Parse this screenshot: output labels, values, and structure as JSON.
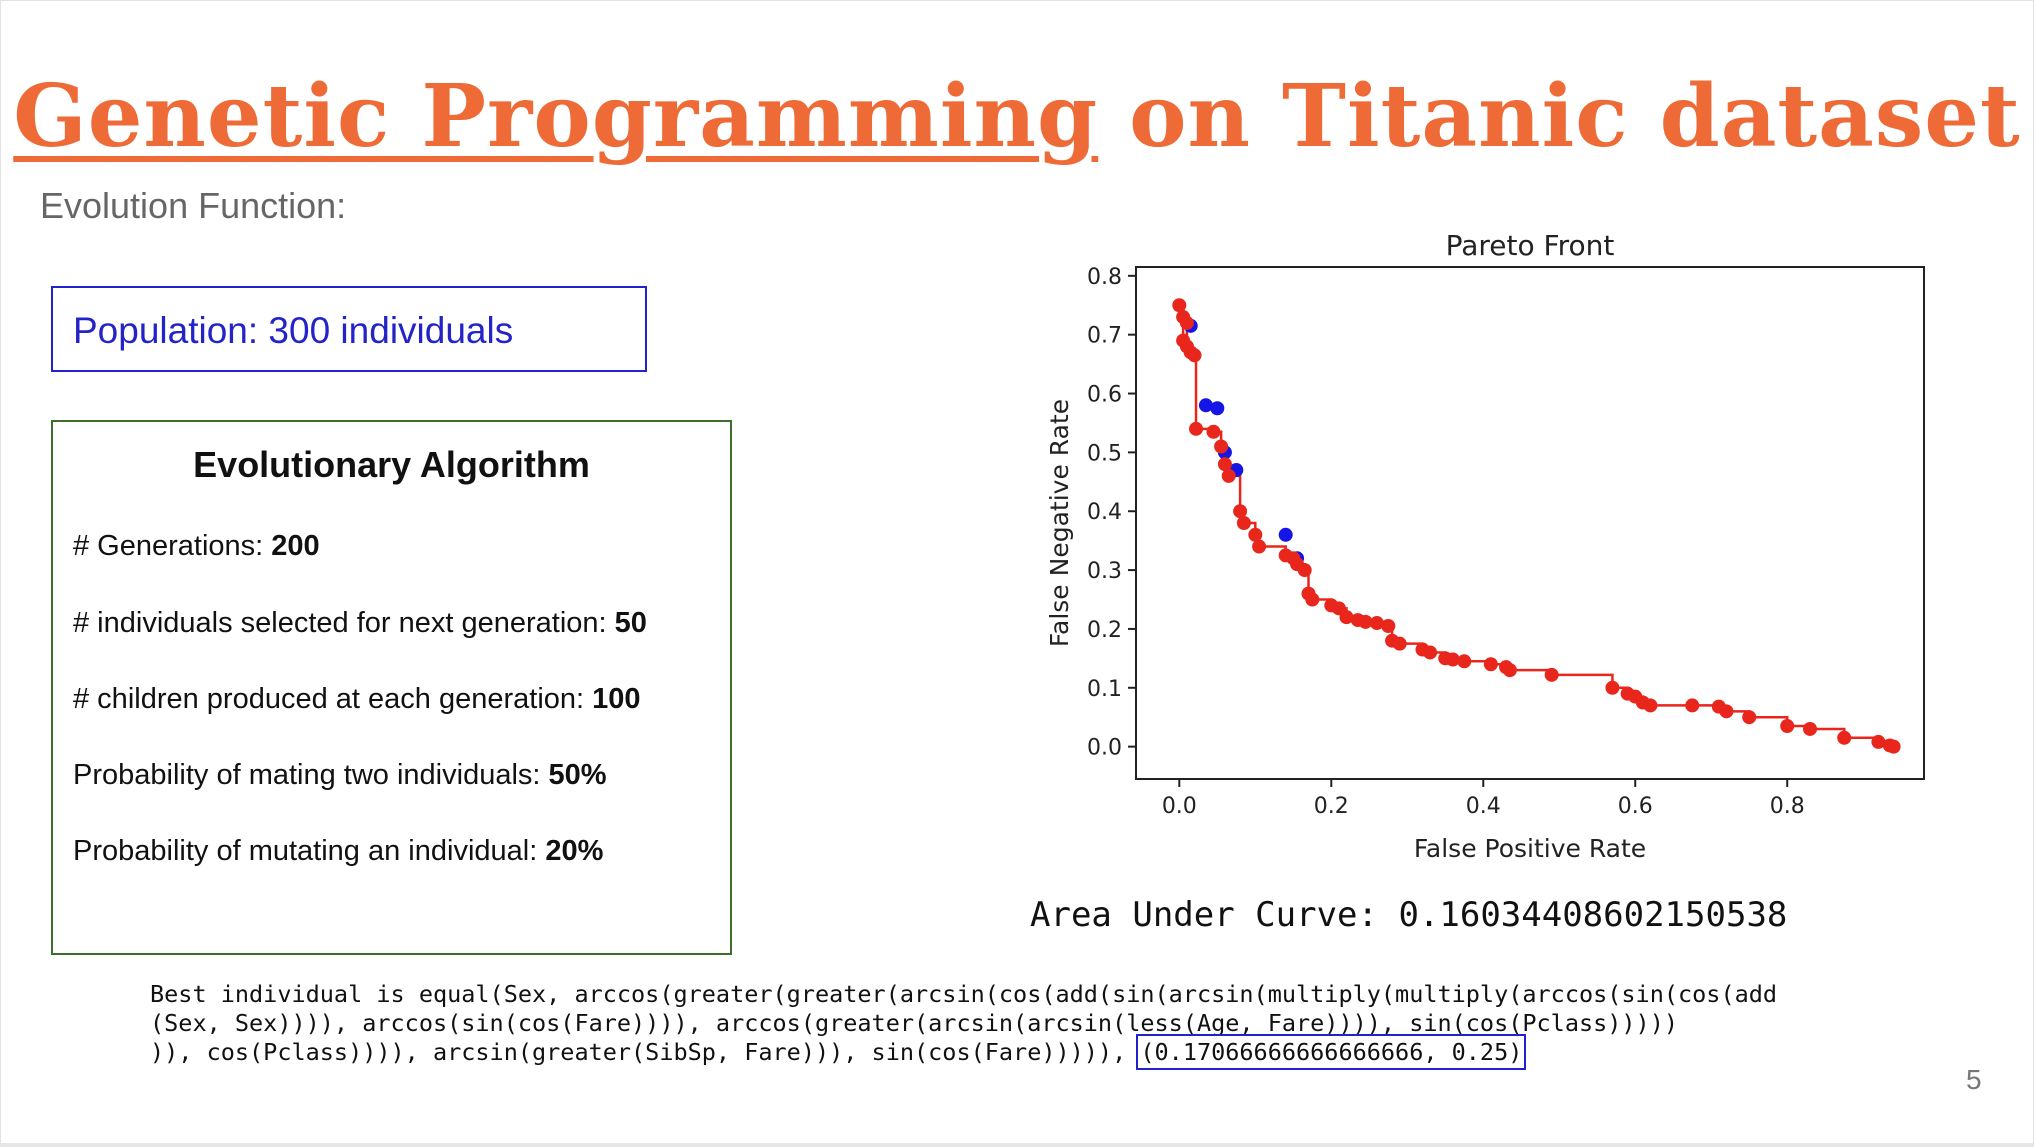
{
  "title": {
    "part1": "Genetic Programming",
    "part2": " on Titanic dataset"
  },
  "subtitle": "Evolution Function:",
  "population": "Population: 300 individuals",
  "ea": {
    "title": "Evolutionary Algorithm",
    "items": [
      {
        "label": "# Generations: ",
        "value": "200"
      },
      {
        "label": "# individuals selected for next generation: ",
        "value": "50"
      },
      {
        "label": "# children produced at each generation: ",
        "value": "100"
      },
      {
        "label": "Probability of mating two individuals: ",
        "value": "50%"
      },
      {
        "label": "Probability of mutating an individual: ",
        "value": "20%"
      }
    ]
  },
  "chart_data": {
    "type": "scatter",
    "title": "Pareto Front",
    "xlabel": "False Positive Rate",
    "ylabel": "False Negative Rate",
    "xlim": [
      -0.057,
      0.98
    ],
    "ylim": [
      -0.055,
      0.815
    ],
    "xticks": [
      "0.0",
      "0.2",
      "0.4",
      "0.6",
      "0.8"
    ],
    "yticks": [
      "0.0",
      "0.1",
      "0.2",
      "0.3",
      "0.4",
      "0.5",
      "0.6",
      "0.7",
      "0.8"
    ],
    "grid": false,
    "series": [
      {
        "color": "#1515e6",
        "points": [
          [
            0.015,
            0.715
          ],
          [
            0.035,
            0.58
          ],
          [
            0.05,
            0.575
          ],
          [
            0.06,
            0.5
          ],
          [
            0.075,
            0.47
          ],
          [
            0.14,
            0.36
          ],
          [
            0.155,
            0.32
          ]
        ]
      },
      {
        "color": "#e8261c",
        "points": [
          [
            0.0,
            0.75
          ],
          [
            0.005,
            0.73
          ],
          [
            0.01,
            0.72
          ],
          [
            0.005,
            0.69
          ],
          [
            0.01,
            0.68
          ],
          [
            0.015,
            0.67
          ],
          [
            0.02,
            0.665
          ],
          [
            0.022,
            0.54
          ],
          [
            0.045,
            0.535
          ],
          [
            0.055,
            0.51
          ],
          [
            0.06,
            0.48
          ],
          [
            0.065,
            0.46
          ],
          [
            0.08,
            0.4
          ],
          [
            0.085,
            0.38
          ],
          [
            0.1,
            0.36
          ],
          [
            0.105,
            0.34
          ],
          [
            0.14,
            0.325
          ],
          [
            0.15,
            0.32
          ],
          [
            0.155,
            0.31
          ],
          [
            0.165,
            0.3
          ],
          [
            0.17,
            0.26
          ],
          [
            0.175,
            0.25
          ],
          [
            0.2,
            0.24
          ],
          [
            0.21,
            0.235
          ],
          [
            0.22,
            0.22
          ],
          [
            0.235,
            0.215
          ],
          [
            0.245,
            0.212
          ],
          [
            0.26,
            0.21
          ],
          [
            0.275,
            0.205
          ],
          [
            0.28,
            0.18
          ],
          [
            0.29,
            0.175
          ],
          [
            0.32,
            0.165
          ],
          [
            0.33,
            0.16
          ],
          [
            0.35,
            0.15
          ],
          [
            0.36,
            0.148
          ],
          [
            0.375,
            0.145
          ],
          [
            0.41,
            0.14
          ],
          [
            0.43,
            0.135
          ],
          [
            0.435,
            0.13
          ],
          [
            0.49,
            0.122
          ],
          [
            0.57,
            0.1
          ],
          [
            0.59,
            0.09
          ],
          [
            0.6,
            0.085
          ],
          [
            0.61,
            0.075
          ],
          [
            0.62,
            0.07
          ],
          [
            0.675,
            0.07
          ],
          [
            0.71,
            0.068
          ],
          [
            0.72,
            0.06
          ],
          [
            0.75,
            0.05
          ],
          [
            0.8,
            0.035
          ],
          [
            0.83,
            0.03
          ],
          [
            0.875,
            0.015
          ],
          [
            0.92,
            0.008
          ],
          [
            0.935,
            0.002
          ],
          [
            0.94,
            0.0
          ]
        ]
      }
    ]
  },
  "auc": "Area Under Curve: 0.16034408602150538",
  "best": {
    "line1": "Best individual is equal(Sex, arccos(greater(greater(arcsin(cos(add(sin(arcsin(multiply(multiply(arccos(sin(cos(add",
    "line2": "(Sex, Sex)))), arccos(sin(cos(Fare)))), arccos(greater(arcsin(arcsin(less(Age, Fare)))), sin(cos(Pclass)))))",
    "line3": ")), cos(Pclass)))), arcsin(greater(SibSp, Fare))), sin(cos(Fare))))), ",
    "highlight": "(0.17066666666666666, 0.25)"
  },
  "page_number": "5"
}
